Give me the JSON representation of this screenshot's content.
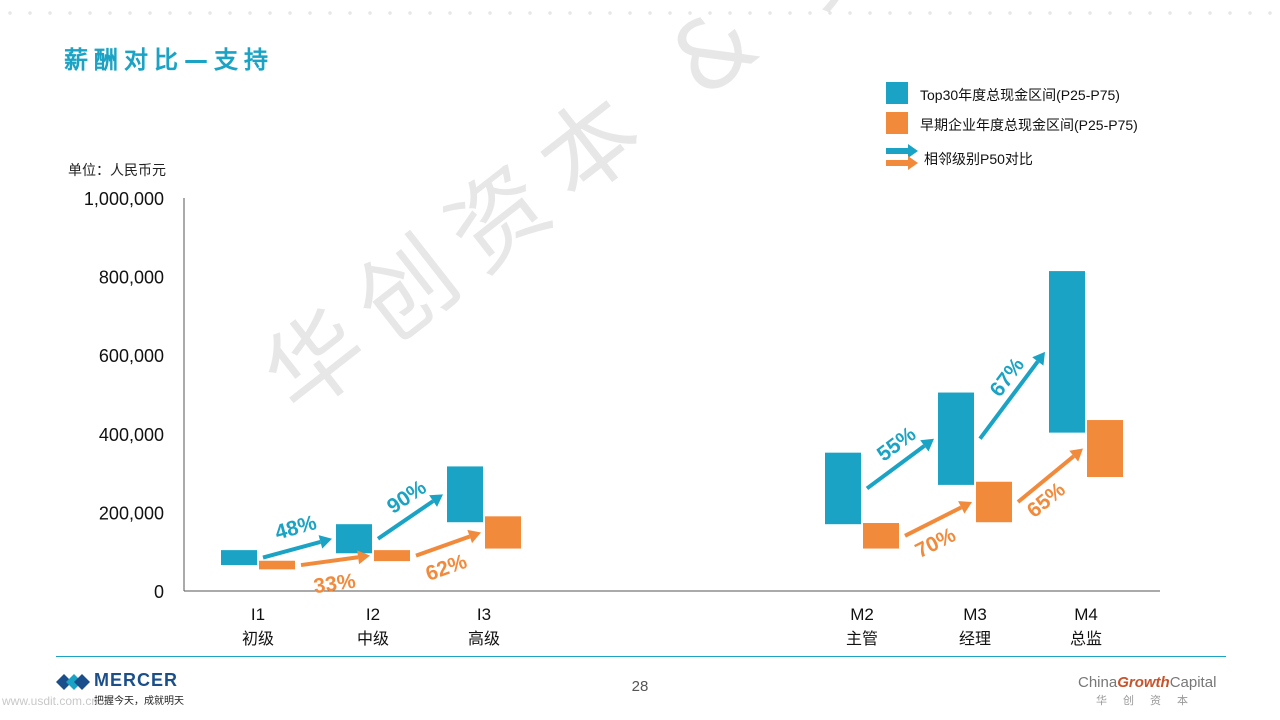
{
  "header": {
    "title": "薪酬对比—支持"
  },
  "unit_label": "单位：人民币元",
  "legend": [
    {
      "label": "Top30年度总现金区间(P25-P75)",
      "color": "#1aa3c4",
      "icon": "square"
    },
    {
      "label": "早期企业年度总现金区间(P25-P75)",
      "color": "#f28a3c",
      "icon": "square"
    },
    {
      "label": "相邻级别P50对比",
      "icon": "arrow-pair"
    }
  ],
  "chart_data": {
    "type": "floating-bar",
    "ylim": [
      0,
      1000000
    ],
    "y_ticks": [
      "0",
      "200,000",
      "400,000",
      "600,000",
      "800,000",
      "1,000,000"
    ],
    "categories": [
      {
        "code": "I1",
        "name": "初级"
      },
      {
        "code": "I2",
        "name": "中级"
      },
      {
        "code": "I3",
        "name": "高级"
      },
      {
        "code": "M2",
        "name": "主管"
      },
      {
        "code": "M3",
        "name": "经理"
      },
      {
        "code": "M4",
        "name": "总监"
      }
    ],
    "series": [
      {
        "name": "Top30年度总现金区间(P25-P75)",
        "color": "#1aa3c4",
        "ranges": [
          [
            66000,
            104000
          ],
          [
            96000,
            170000
          ],
          [
            175000,
            317000
          ],
          [
            170000,
            352000
          ],
          [
            270000,
            505000
          ],
          [
            403000,
            814000
          ]
        ]
      },
      {
        "name": "早期企业年度总现金区间(P25-P75)",
        "color": "#f28a3c",
        "ranges": [
          [
            55000,
            77000
          ],
          [
            76000,
            104000
          ],
          [
            108000,
            190000
          ],
          [
            108000,
            173000
          ],
          [
            175000,
            278000
          ],
          [
            290000,
            435000
          ]
        ]
      }
    ],
    "comparisons": [
      {
        "series": 0,
        "from": 0,
        "to": 1,
        "label": "48%"
      },
      {
        "series": 0,
        "from": 1,
        "to": 2,
        "label": "90%"
      },
      {
        "series": 1,
        "from": 0,
        "to": 1,
        "label": "33%"
      },
      {
        "series": 1,
        "from": 1,
        "to": 2,
        "label": "62%"
      },
      {
        "series": 0,
        "from": 3,
        "to": 4,
        "label": "55%"
      },
      {
        "series": 0,
        "from": 4,
        "to": 5,
        "label": "67%"
      },
      {
        "series": 1,
        "from": 3,
        "to": 4,
        "label": "70%"
      },
      {
        "series": 1,
        "from": 4,
        "to": 5,
        "label": "65%"
      }
    ]
  },
  "watermark": "华创资本 & 美世",
  "footer": {
    "page_number": "28",
    "mercer_name": "MERCER",
    "mercer_tagline": "把握今天，成就明天",
    "cgc_prefix": "China",
    "cgc_bold": "Growth",
    "cgc_suffix": "Capital",
    "cgc_subtitle": "华创资本",
    "url": "www.usdit.com.cn"
  }
}
